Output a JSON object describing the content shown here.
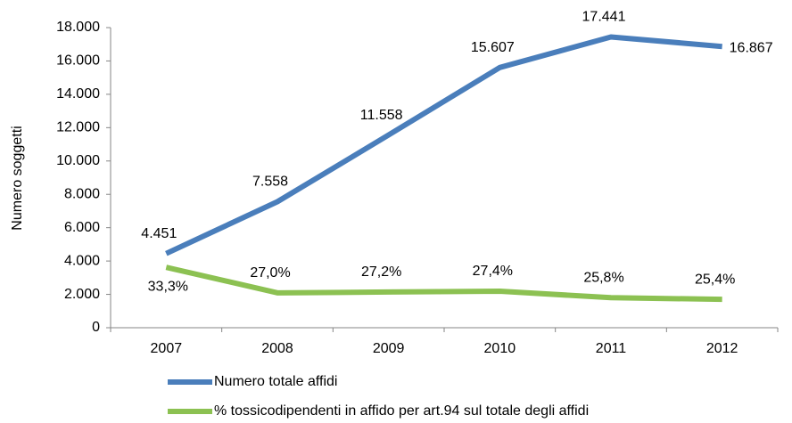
{
  "chart_data": {
    "type": "line",
    "y_label": "Numero soggetti",
    "categories": [
      "2007",
      "2008",
      "2009",
      "2010",
      "2011",
      "2012"
    ],
    "ylim": [
      0,
      18000
    ],
    "yticks": [
      0,
      {
        "value": 2000,
        "label": "2.000"
      },
      {
        "value": 4000,
        "label": "4.000"
      },
      {
        "value": 6000,
        "label": "6.000"
      },
      {
        "value": 8000,
        "label": "8.000"
      },
      {
        "value": 10000,
        "label": "10.000"
      },
      {
        "value": 12000,
        "label": "12.000"
      },
      {
        "value": 14000,
        "label": "14.000"
      },
      {
        "value": 16000,
        "label": "16.000"
      },
      {
        "value": 18000,
        "label": "18.000"
      }
    ],
    "y2lim": [
      18.4,
      92.4
    ],
    "series": [
      {
        "name": "Numero totale affidi",
        "color": "#4a7ebb",
        "values": [
          4451,
          7558,
          11558,
          15607,
          17441,
          16867
        ],
        "value_labels": [
          "4.451",
          "7.558",
          "11.558",
          "15.607",
          "17.441",
          "16.867"
        ]
      },
      {
        "name": "% tossicodipendenti in affido per art.94 sul totale degli affidi",
        "color": "#8cc152",
        "axis": "y2",
        "values": [
          33.3,
          27.0,
          27.2,
          27.4,
          25.8,
          25.4
        ],
        "value_labels": [
          "33,3%",
          "27,0%",
          "27,2%",
          "27,4%",
          "25,8%",
          "25,4%"
        ]
      }
    ]
  }
}
